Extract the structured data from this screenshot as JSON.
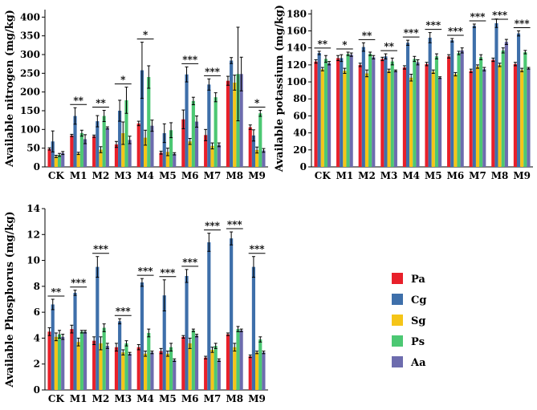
{
  "legend": {
    "series": [
      {
        "name": "Pa",
        "color": "#e8202a"
      },
      {
        "name": "Cg",
        "color": "#3e6faa"
      },
      {
        "name": "Sg",
        "color": "#f5c518"
      },
      {
        "name": "Ps",
        "color": "#4cc873"
      },
      {
        "name": "Aa",
        "color": "#6d6cae"
      }
    ]
  },
  "chart_data": [
    {
      "id": "nitrogen",
      "type": "bar",
      "ylabel": "Available nitrogen (mg/kg)",
      "ylim": [
        0,
        420
      ],
      "yticks": [
        0,
        50,
        100,
        150,
        200,
        250,
        300,
        350,
        400
      ],
      "categories": [
        "CK",
        "M1",
        "M2",
        "M3",
        "M4",
        "M5",
        "M6",
        "M7",
        "M8",
        "M9"
      ],
      "series": [
        {
          "name": "Pa",
          "values": [
            48,
            84,
            82,
            60,
            116,
            38,
            127,
            85,
            230,
            106
          ],
          "errors": [
            3,
            3,
            3,
            8,
            6,
            4,
            25,
            15,
            12,
            6
          ]
        },
        {
          "name": "Cg",
          "values": [
            68,
            136,
            122,
            150,
            258,
            90,
            247,
            220,
            284,
            84
          ],
          "errors": [
            28,
            22,
            15,
            28,
            75,
            25,
            20,
            15,
            8,
            15
          ]
        },
        {
          "name": "Sg",
          "values": [
            28,
            36,
            46,
            90,
            78,
            40,
            68,
            56,
            225,
            45
          ],
          "errors": [
            3,
            3,
            8,
            30,
            20,
            10,
            8,
            8,
            20,
            8
          ]
        },
        {
          "name": "Ps",
          "values": [
            32,
            90,
            136,
            178,
            240,
            98,
            176,
            186,
            248,
            143
          ],
          "errors": [
            4,
            8,
            15,
            35,
            30,
            20,
            10,
            12,
            125,
            8
          ]
        },
        {
          "name": "Aa",
          "values": [
            37,
            74,
            104,
            72,
            110,
            35,
            121,
            59,
            248,
            44
          ],
          "errors": [
            4,
            12,
            3,
            10,
            15,
            3,
            15,
            5,
            45,
            5
          ]
        }
      ],
      "significance": [
        "",
        "**",
        "**",
        "*",
        "*",
        "",
        "***",
        "***",
        "",
        "*"
      ]
    },
    {
      "id": "potassium",
      "type": "bar",
      "ylabel": "Available potassium (mg/kg)",
      "ylim": [
        0,
        185
      ],
      "yticks": [
        0,
        20,
        40,
        60,
        80,
        100,
        120,
        140,
        160,
        180
      ],
      "categories": [
        "CK",
        "M1",
        "M2",
        "M3",
        "M4",
        "M5",
        "M6",
        "M7",
        "M8",
        "M9"
      ],
      "series": [
        {
          "name": "Pa",
          "values": [
            124,
            128,
            120,
            127,
            117,
            121,
            130,
            113,
            126,
            121
          ],
          "errors": [
            2,
            3,
            2,
            2,
            2,
            2,
            2,
            2,
            2,
            2
          ]
        },
        {
          "name": "Cg",
          "values": [
            134,
            128,
            141,
            130,
            146,
            152,
            149,
            166,
            169,
            157
          ],
          "errors": [
            2,
            4,
            5,
            3,
            3,
            6,
            2,
            2,
            5,
            3
          ]
        },
        {
          "name": "Sg",
          "values": [
            115,
            113,
            110,
            113,
            105,
            112,
            109,
            118,
            120,
            114
          ],
          "errors": [
            2,
            3,
            4,
            2,
            4,
            2,
            2,
            2,
            2,
            2
          ]
        },
        {
          "name": "Ps",
          "values": [
            127,
            133,
            133,
            124,
            127,
            130,
            134,
            129,
            137,
            135
          ],
          "errors": [
            4,
            2,
            2,
            4,
            3,
            3,
            2,
            3,
            3,
            2
          ]
        },
        {
          "name": "Aa",
          "values": [
            122,
            132,
            129,
            113,
            123,
            105,
            137,
            115,
            147,
            116
          ],
          "errors": [
            2,
            2,
            2,
            1,
            3,
            1,
            3,
            2,
            3,
            1
          ]
        }
      ],
      "significance": [
        "**",
        "*",
        "**",
        "**",
        "***",
        "***",
        "***",
        "***",
        "***",
        "***"
      ]
    },
    {
      "id": "phosphorus",
      "type": "bar",
      "ylabel": "Available Phosphorus (mg/kg)",
      "ylim": [
        0,
        14
      ],
      "yticks": [
        0,
        2,
        4,
        6,
        8,
        10,
        12,
        14
      ],
      "categories": [
        "CK",
        "M1",
        "M2",
        "M3",
        "M4",
        "M5",
        "M6",
        "M7",
        "M8",
        "M9"
      ],
      "series": [
        {
          "name": "Pa",
          "values": [
            4.5,
            4.7,
            3.8,
            3.3,
            3.3,
            3.0,
            4.1,
            2.5,
            4.3,
            2.6
          ],
          "errors": [
            0.3,
            0.3,
            0.3,
            0.3,
            0.2,
            0.2,
            0.1,
            0.1,
            0.1,
            0.1
          ]
        },
        {
          "name": "Cg",
          "values": [
            6.6,
            7.5,
            9.5,
            5.3,
            8.3,
            7.3,
            8.8,
            11.4,
            11.7,
            9.5
          ],
          "errors": [
            0.4,
            0.2,
            0.8,
            0.2,
            0.3,
            1.2,
            0.5,
            0.7,
            0.5,
            0.8
          ]
        },
        {
          "name": "Sg",
          "values": [
            4.1,
            3.7,
            3.6,
            2.9,
            2.8,
            2.8,
            3.6,
            3.1,
            3.3,
            2.9
          ],
          "errors": [
            0.3,
            0.3,
            0.5,
            0.2,
            0.2,
            0.2,
            0.4,
            0.2,
            0.3,
            0.1
          ]
        },
        {
          "name": "Ps",
          "values": [
            4.3,
            4.5,
            4.8,
            3.6,
            4.4,
            3.3,
            4.6,
            3.4,
            4.7,
            3.9
          ],
          "errors": [
            0.3,
            0.1,
            0.3,
            0.2,
            0.3,
            0.3,
            0.1,
            0.2,
            0.2,
            0.2
          ]
        },
        {
          "name": "Aa",
          "values": [
            4.1,
            4.5,
            3.4,
            2.8,
            2.9,
            2.3,
            4.2,
            2.3,
            4.6,
            2.9
          ],
          "errors": [
            0.2,
            0.1,
            0.2,
            0.1,
            0.1,
            0.1,
            0.1,
            0.1,
            0.1,
            0.1
          ]
        }
      ],
      "significance": [
        "**",
        "***",
        "***",
        "***",
        "***",
        "***",
        "***",
        "***",
        "***",
        "***"
      ]
    }
  ]
}
